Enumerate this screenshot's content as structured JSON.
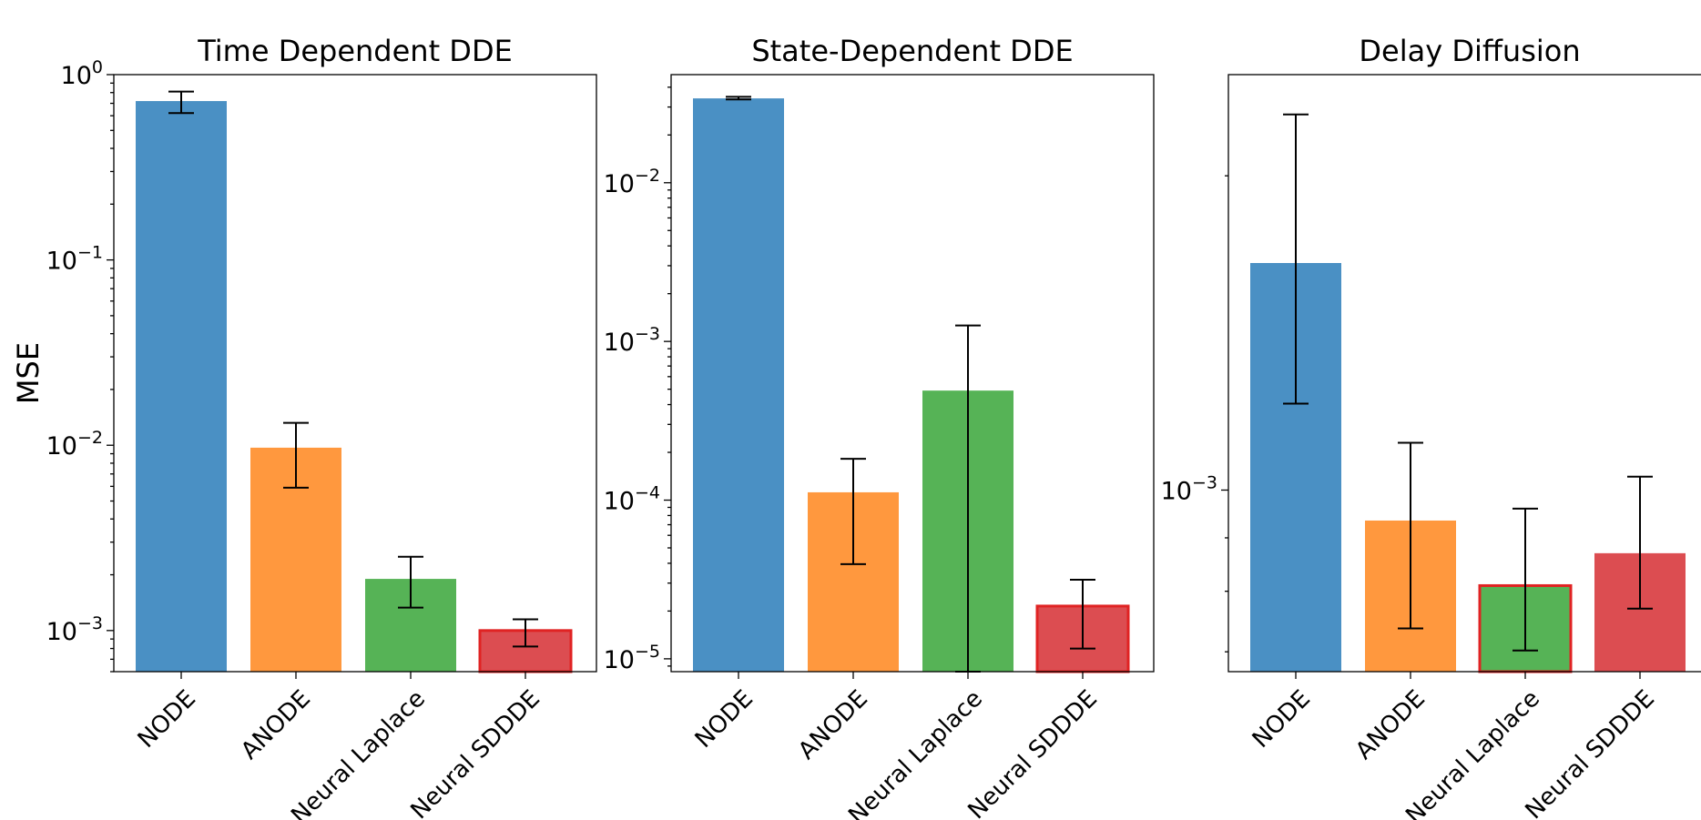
{
  "chart_data": [
    {
      "type": "bar",
      "title": "Time Dependent DDE",
      "ylabel": "MSE",
      "yscale": "log",
      "ylim": [
        0.0006,
        1.0
      ],
      "yticks": [
        {
          "value": 1.0,
          "base": "10",
          "exp": "0"
        },
        {
          "value": 0.1,
          "base": "10",
          "exp": "−1"
        },
        {
          "value": 0.01,
          "base": "10",
          "exp": "−2"
        },
        {
          "value": 0.001,
          "base": "10",
          "exp": "−3"
        }
      ],
      "categories": [
        "NODE",
        "ANODE",
        "Neural Laplace",
        "Neural SDDDE"
      ],
      "values": [
        0.72,
        0.0097,
        0.0019,
        0.001
      ],
      "err_low": [
        0.62,
        0.0059,
        0.00133,
        0.00082
      ],
      "err_high": [
        0.81,
        0.0132,
        0.0025,
        0.00115
      ],
      "colors": [
        "#4a90c4",
        "#ff983e",
        "#56b356",
        "#dc4d51"
      ],
      "highlight": [
        3
      ]
    },
    {
      "type": "bar",
      "title": "State-Dependent DDE",
      "ylabel": "",
      "yscale": "log",
      "ylim": [
        8.3e-06,
        0.048
      ],
      "yticks": [
        {
          "value": 0.01,
          "base": "10",
          "exp": "−2"
        },
        {
          "value": 0.001,
          "base": "10",
          "exp": "−3"
        },
        {
          "value": 0.0001,
          "base": "10",
          "exp": "−4"
        },
        {
          "value": 1e-05,
          "base": "10",
          "exp": "−5"
        }
      ],
      "categories": [
        "NODE",
        "ANODE",
        "Neural Laplace",
        "Neural SDDDE"
      ],
      "values": [
        0.034,
        0.000112,
        0.00049,
        2.15e-05
      ],
      "err_low": [
        0.0335,
        3.95e-05,
        8.3e-06,
        1.16e-05
      ],
      "err_high": [
        0.0348,
        0.000182,
        0.00126,
        3.15e-05
      ],
      "colors": [
        "#4a90c4",
        "#ff983e",
        "#56b356",
        "#dc4d51"
      ],
      "highlight": [
        3
      ]
    },
    {
      "type": "bar",
      "title": "Delay Diffusion",
      "ylabel": "",
      "yscale": "log",
      "ylim": [
        0.00067,
        0.0025
      ],
      "yticks": [
        {
          "value": 0.001,
          "base": "10",
          "exp": "−3"
        }
      ],
      "minor_yticks": [
        0.0007,
        0.0008,
        0.0009,
        0.002
      ],
      "categories": [
        "NODE",
        "ANODE",
        "Neural Laplace",
        "Neural SDDDE"
      ],
      "values": [
        0.00165,
        0.000935,
        0.00081,
        0.00087
      ],
      "err_low": [
        0.00121,
        0.000737,
        0.000702,
        0.00077
      ],
      "err_high": [
        0.00229,
        0.00111,
        0.00096,
        0.00103
      ],
      "colors": [
        "#4a90c4",
        "#ff983e",
        "#56b356",
        "#dc4d51"
      ],
      "highlight": [
        2
      ]
    }
  ]
}
